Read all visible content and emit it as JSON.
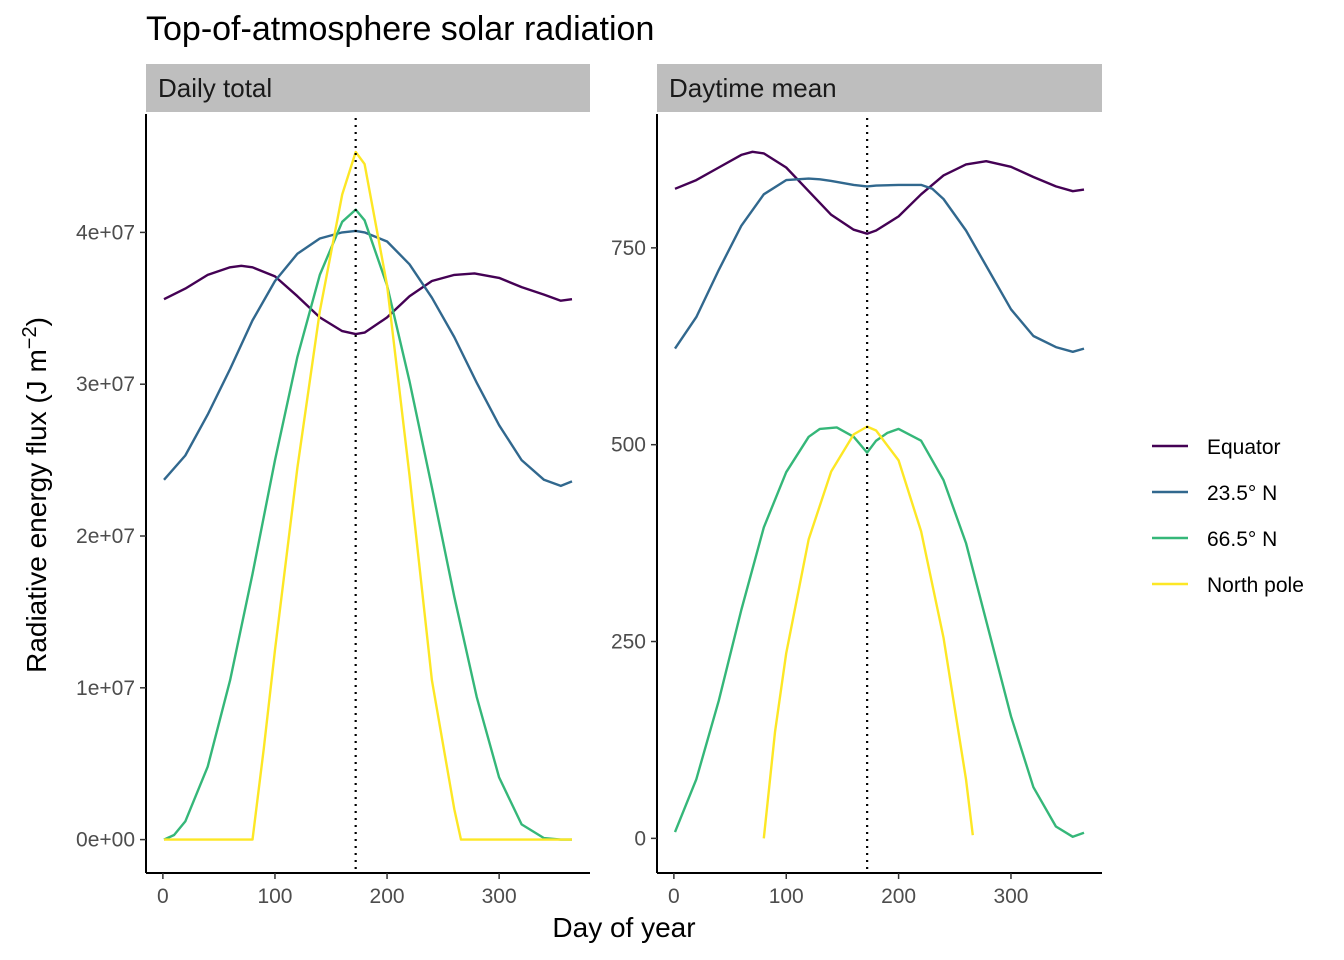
{
  "chart_data": {
    "type": "line",
    "title": "Top-of-atmosphere solar radiation",
    "xlabel": "Day of year",
    "ylabel": "Radiative energy flux (J m",
    "ylabel_superscript": "−2",
    "ylabel_close": ")",
    "legend_position": "right",
    "grid": false,
    "reference_line": {
      "x": 172,
      "style": "dotted"
    },
    "series_colors": {
      "Equator": "#440154",
      "23.5° N": "#31688e",
      "66.5° N": "#35b779",
      "North pole": "#fde725"
    },
    "legend": [
      "Equator",
      "23.5° N",
      "66.5° N",
      "North pole"
    ],
    "panels": [
      {
        "strip": "Daily total",
        "xlim": [
          1,
          365
        ],
        "ylim": [
          -2200000,
          47800000
        ],
        "x_ticks": [
          0,
          100,
          200,
          300
        ],
        "x_tick_labels": [
          "0",
          "100",
          "200",
          "300"
        ],
        "y_ticks": [
          0,
          10000000,
          20000000,
          30000000,
          40000000
        ],
        "y_tick_labels": [
          "0e+00",
          "1e+07",
          "2e+07",
          "3e+07",
          "4e+07"
        ],
        "series": [
          {
            "name": "Equator",
            "x": [
              1,
              20,
              40,
              60,
              70,
              80,
              100,
              120,
              140,
              160,
              172,
              180,
              200,
              220,
              240,
              260,
              278,
              300,
              320,
              340,
              355,
              365
            ],
            "y": [
              35600000,
              36300000,
              37200000,
              37700000,
              37800000,
              37700000,
              37100000,
              35800000,
              34400000,
              33500000,
              33300000,
              33400000,
              34400000,
              35800000,
              36800000,
              37200000,
              37300000,
              37000000,
              36400000,
              35900000,
              35500000,
              35600000
            ]
          },
          {
            "name": "23.5° N",
            "x": [
              1,
              20,
              40,
              60,
              80,
              100,
              120,
              140,
              160,
              172,
              180,
              200,
              220,
              240,
              260,
              280,
              300,
              320,
              340,
              355,
              365
            ],
            "y": [
              23700000,
              25300000,
              28000000,
              31000000,
              34200000,
              36800000,
              38600000,
              39600000,
              40000000,
              40100000,
              40000000,
              39400000,
              37900000,
              35700000,
              33100000,
              30100000,
              27300000,
              25000000,
              23700000,
              23300000,
              23600000
            ]
          },
          {
            "name": "66.5° N",
            "x": [
              1,
              10,
              20,
              40,
              60,
              80,
              100,
              120,
              140,
              160,
              172,
              180,
              200,
              220,
              240,
              260,
              280,
              300,
              320,
              340,
              355,
              365
            ],
            "y": [
              0,
              300000,
              1200000,
              4800000,
              10500000,
              17500000,
              25000000,
              31800000,
              37200000,
              40700000,
              41500000,
              40800000,
              36500000,
              30200000,
              23200000,
              16000000,
              9400000,
              4100000,
              1000000,
              100000,
              0,
              0
            ]
          },
          {
            "name": "North pole",
            "x": [
              1,
              80,
              90,
              100,
              120,
              140,
              160,
              172,
              180,
              200,
              220,
              240,
              260,
              266,
              280,
              300,
              320,
              340,
              365
            ],
            "y": [
              0,
              0,
              6000000,
              12500000,
              24500000,
              34800000,
              42500000,
              45300000,
              44500000,
              36500000,
              24000000,
              10500000,
              2000000,
              0,
              0,
              0,
              0,
              0,
              0
            ]
          }
        ]
      },
      {
        "strip": "Daytime mean",
        "xlim": [
          1,
          365
        ],
        "ylim": [
          -44,
          920
        ],
        "x_ticks": [
          0,
          100,
          200,
          300
        ],
        "x_tick_labels": [
          "0",
          "100",
          "200",
          "300"
        ],
        "y_ticks": [
          0,
          250,
          500,
          750
        ],
        "y_tick_labels": [
          "0",
          "250",
          "500",
          "750"
        ],
        "series": [
          {
            "name": "Equator",
            "x": [
              1,
              20,
              40,
              60,
              70,
              80,
              100,
              120,
              140,
              160,
              172,
              180,
              200,
              220,
              240,
              260,
              278,
              300,
              320,
              340,
              355,
              365
            ],
            "y": [
              825,
              836,
              852,
              868,
              872,
              870,
              852,
              822,
              792,
              773,
              768,
              772,
              790,
              818,
              842,
              856,
              860,
              853,
              840,
              828,
              822,
              824
            ]
          },
          {
            "name": "23.5° N",
            "x": [
              1,
              20,
              40,
              60,
              80,
              100,
              120,
              130,
              140,
              160,
              172,
              180,
              200,
              220,
              230,
              240,
              260,
              280,
              300,
              320,
              340,
              355,
              365
            ],
            "y": [
              622,
              662,
              722,
              778,
              818,
              836,
              838,
              837,
              835,
              830,
              828,
              829,
              830,
              830,
              825,
              812,
              772,
              722,
              672,
              638,
              624,
              618,
              622
            ]
          },
          {
            "name": "66.5° N",
            "x": [
              1,
              20,
              40,
              60,
              80,
              100,
              120,
              130,
              145,
              160,
              172,
              180,
              190,
              200,
              220,
              240,
              260,
              280,
              300,
              320,
              340,
              355,
              365
            ],
            "y": [
              8,
              75,
              175,
              290,
              395,
              465,
              510,
              520,
              522,
              510,
              490,
              505,
              515,
              520,
              505,
              455,
              375,
              265,
              155,
              65,
              15,
              2,
              7
            ]
          },
          {
            "name": "North pole",
            "x": [
              80,
              90,
              100,
              120,
              140,
              160,
              172,
              180,
              200,
              220,
              240,
              260,
              266
            ],
            "y": [
              0,
              135,
              235,
              380,
              466,
              513,
              523,
              518,
              480,
              390,
              255,
              75,
              4
            ]
          }
        ]
      }
    ]
  }
}
